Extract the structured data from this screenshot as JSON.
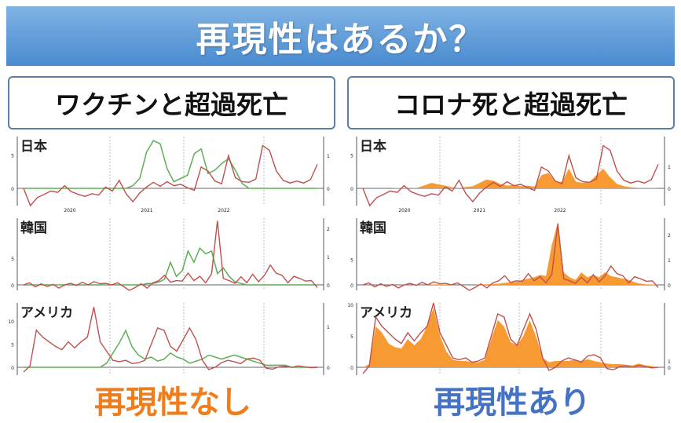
{
  "title": "再現性はあるか？",
  "left": {
    "header": "ワクチンと超過死亡",
    "conclusion": "再現性なし",
    "conclusion_color": "#ef7d1e"
  },
  "right": {
    "header": "コロナ死と超過死亡",
    "conclusion": "再現性あり",
    "conclusion_color": "#4472c4"
  },
  "colors": {
    "banner": "#5b9bd5",
    "excess_line": "#c0504d",
    "vaccine_line": "#5fae57",
    "covid_fill": "#f79a32"
  },
  "chart_data": [
    {
      "type": "line",
      "panel": "左上",
      "country": "日本",
      "x_ticks": [
        "2020",
        "2021",
        "2022"
      ],
      "y_ticks_left": [
        "5",
        "0"
      ],
      "y_ticks_right": [
        "1",
        "0"
      ],
      "series": [
        {
          "values": [
            0,
            -2.8,
            -1.4,
            -0.9,
            -0.4,
            -0.6,
            0.4,
            -0.5,
            -0.9,
            -1.2,
            -0.8,
            -1.0,
            0.2,
            -0.4,
            1.2,
            -0.8,
            -2.0,
            -0.7,
            0.2,
            0.9,
            0.3,
            1.0,
            0.4,
            0.6,
            0.1,
            -0.3,
            3.2,
            2.6,
            1.1,
            0.7,
            4.9,
            1.6,
            1.0,
            0.9,
            1.4,
            6.4,
            5.7,
            2.6,
            1.2,
            0.8,
            1.1,
            0.8,
            1.3,
            3.6
          ]
        },
        {
          "values": [
            0,
            0,
            0,
            0,
            0,
            0,
            0,
            0,
            0,
            0,
            0,
            0,
            0,
            0,
            0,
            0,
            0.08,
            0.3,
            1.1,
            1.45,
            1.35,
            0.6,
            0.2,
            0.3,
            0.4,
            1.05,
            1.2,
            0.45,
            0.55,
            0.75,
            0.9,
            0.55,
            0.15,
            0,
            0,
            0,
            0,
            0,
            0,
            0,
            0,
            0,
            0,
            0
          ]
        }
      ]
    },
    {
      "type": "area",
      "panel": "右上",
      "country": "日本",
      "x_ticks": [
        "2020",
        "2021",
        "2022"
      ],
      "y_ticks_left": [
        "5",
        "0"
      ],
      "y_ticks_right": [
        "1",
        "0"
      ],
      "series": [
        {
          "values": [
            0,
            -2.8,
            -1.4,
            -0.9,
            -0.4,
            -0.6,
            0.4,
            -0.5,
            -0.9,
            -1.2,
            -0.8,
            -1.0,
            0.2,
            -0.4,
            1.2,
            -0.8,
            -2.0,
            -0.7,
            0.2,
            0.9,
            0.3,
            1.0,
            0.4,
            0.6,
            0.1,
            -0.3,
            3.2,
            2.6,
            1.1,
            0.7,
            4.9,
            1.6,
            1.0,
            0.9,
            1.4,
            6.4,
            5.7,
            2.6,
            1.2,
            0.8,
            1.1,
            0.8,
            1.3,
            3.6
          ]
        },
        {
          "values": [
            0,
            0,
            0,
            0,
            0,
            0.02,
            0.02,
            0,
            0.04,
            0.14,
            0.25,
            0.18,
            0.12,
            0.05,
            0.02,
            0.06,
            0.1,
            0.25,
            0.4,
            0.35,
            0.2,
            0.12,
            0.15,
            0.1,
            0.12,
            0.08,
            0.6,
            0.7,
            0.3,
            0.3,
            0.9,
            0.3,
            0.25,
            0.3,
            0.6,
            0.9,
            0.5,
            0.2,
            0.1,
            0.05,
            0.03,
            0.02,
            0.02,
            0
          ]
        }
      ]
    },
    {
      "type": "line",
      "panel": "左中",
      "country": "韓国",
      "y_ticks_left": [
        "5",
        "0"
      ],
      "y_ticks_right": [
        "2",
        "1",
        "0"
      ],
      "series": [
        {
          "values": [
            0,
            0.4,
            -0.4,
            0.2,
            -0.3,
            0.1,
            -0.6,
            0,
            0.3,
            -0.1,
            0.5,
            0,
            0.6,
            0.2,
            0.3,
            0,
            0.4,
            -0.3,
            -1.8,
            -0.5,
            0.2,
            -0.6,
            0.4,
            0.8,
            1.8,
            0.5,
            0.8,
            0.7,
            2.2,
            0.8,
            1.6,
            0.4,
            2.1,
            12,
            1.2,
            0.8,
            0.3,
            1.5,
            0.4,
            2.0,
            0.6,
            1.8,
            3.7,
            2.2,
            1.8,
            0.4,
            1.6,
            1.2,
            0.7,
            0.8,
            -0.5
          ]
        },
        {
          "values": [
            0,
            0,
            0,
            0,
            0,
            0,
            0,
            0,
            0,
            0,
            0,
            0,
            0,
            0,
            0,
            0,
            0,
            0,
            0,
            0,
            0,
            0.05,
            0.05,
            0.1,
            0.2,
            0.8,
            0.3,
            0.5,
            1.2,
            0.8,
            1.3,
            1.1,
            1.2,
            0.4,
            0.6,
            0.3,
            0.1,
            0.05,
            0,
            0,
            0,
            0,
            0,
            0,
            0,
            0,
            0,
            0,
            0,
            0,
            0
          ]
        }
      ]
    },
    {
      "type": "area",
      "panel": "右中",
      "country": "韓国",
      "y_ticks_left": [
        "5",
        "0"
      ],
      "y_ticks_right": [
        "2",
        "1",
        "0"
      ],
      "series": [
        {
          "values": [
            0,
            0.4,
            -0.4,
            0.2,
            -0.3,
            0.1,
            -0.6,
            0,
            0.3,
            -0.1,
            0.5,
            0,
            0.6,
            0.2,
            0.3,
            0,
            0.4,
            -0.3,
            -1.8,
            -0.5,
            0.2,
            -0.6,
            0.4,
            0.8,
            1.8,
            0.5,
            0.8,
            0.7,
            2.2,
            0.8,
            1.6,
            0.4,
            2.1,
            12,
            1.2,
            0.8,
            0.3,
            1.5,
            0.4,
            2.0,
            0.6,
            1.8,
            3.7,
            2.2,
            1.8,
            0.4,
            1.6,
            1.2,
            0.7,
            0.8,
            -0.5
          ]
        },
        {
          "values": [
            0,
            0,
            0,
            0,
            0,
            0,
            0,
            0,
            0,
            0,
            0,
            0,
            0.02,
            0.02,
            0.02,
            0,
            0,
            0,
            0,
            0,
            0.02,
            0.02,
            0.04,
            0.05,
            0.08,
            0.1,
            0.12,
            0.2,
            0.25,
            0.3,
            0.4,
            0.35,
            1.6,
            2.5,
            0.5,
            0.3,
            0.2,
            0.5,
            0.3,
            0.4,
            0.3,
            0.5,
            0.35,
            0.3,
            0.25,
            0.2,
            0.1,
            0.05,
            0.02,
            0.02,
            0
          ]
        }
      ]
    },
    {
      "type": "line",
      "panel": "左下",
      "country": "アメリカ",
      "y_ticks_left": [
        "10",
        "5",
        "0"
      ],
      "y_ticks_right": [
        "1",
        "0"
      ],
      "series": [
        {
          "values": [
            -1,
            0.2,
            8,
            6.5,
            5.5,
            4.5,
            3.8,
            5.5,
            4.2,
            5.5,
            6.5,
            13,
            5.5,
            3.5,
            1.5,
            1.2,
            1.5,
            0.8,
            1.0,
            1.5,
            5.0,
            8.5,
            8.0,
            4.5,
            3.5,
            6.0,
            8.5,
            6.0,
            1.5,
            -0.5,
            0,
            1.0,
            1.5,
            1.2,
            0.8,
            1.8,
            2.0,
            1.5,
            -0.2,
            -0.4,
            0.1,
            0.2,
            0,
            0.3,
            0.1,
            -0.1,
            0
          ]
        },
        {
          "values": [
            0,
            0,
            0,
            0,
            0,
            0,
            0,
            0,
            0,
            0,
            0,
            0,
            0,
            0.1,
            0.35,
            0.6,
            0.9,
            0.5,
            0.3,
            0.2,
            0.25,
            0.15,
            0.2,
            0.35,
            0.25,
            0.2,
            0.1,
            0.15,
            0.2,
            0.3,
            0.25,
            0.2,
            0.25,
            0.3,
            0.25,
            0.2,
            0.15,
            0.1,
            0.05,
            0.05,
            0.05,
            0.05,
            0,
            0,
            0,
            0,
            0
          ]
        }
      ]
    },
    {
      "type": "area",
      "panel": "右下",
      "country": "アメリカ",
      "y_ticks_left": [
        "10",
        "5",
        "0"
      ],
      "y_ticks_right": [
        "1",
        "0"
      ],
      "series": [
        {
          "values": [
            -1,
            0.2,
            8,
            6.5,
            5.5,
            4.5,
            3.8,
            5.5,
            4.2,
            5.5,
            6.5,
            13,
            5.5,
            3.5,
            1.5,
            1.2,
            1.5,
            0.8,
            1.0,
            1.5,
            5.0,
            8.5,
            8.0,
            4.5,
            3.5,
            6.0,
            8.5,
            6.0,
            1.5,
            -0.5,
            0,
            1.0,
            1.5,
            1.2,
            0.8,
            1.8,
            2.0,
            1.5,
            -0.2,
            -0.4,
            0.1,
            0.2,
            0,
            0.3,
            0.1,
            -0.1,
            0
          ]
        },
        {
          "values": [
            0,
            0.5,
            6.5,
            5.5,
            3.8,
            3.2,
            3.0,
            4.5,
            3.5,
            4.5,
            6.5,
            9.5,
            5.0,
            2.5,
            1.2,
            1.0,
            1.0,
            0.8,
            0.8,
            1.2,
            4.5,
            7.5,
            6.5,
            4.0,
            3.5,
            5.0,
            7.5,
            4.8,
            1.5,
            0.8,
            1.0,
            1.0,
            1.0,
            1.2,
            1.0,
            1.3,
            1.0,
            0.8,
            0.6,
            0.5,
            0.5,
            0.4,
            0.3,
            0.6,
            0.3,
            0.2,
            0
          ]
        }
      ]
    }
  ]
}
